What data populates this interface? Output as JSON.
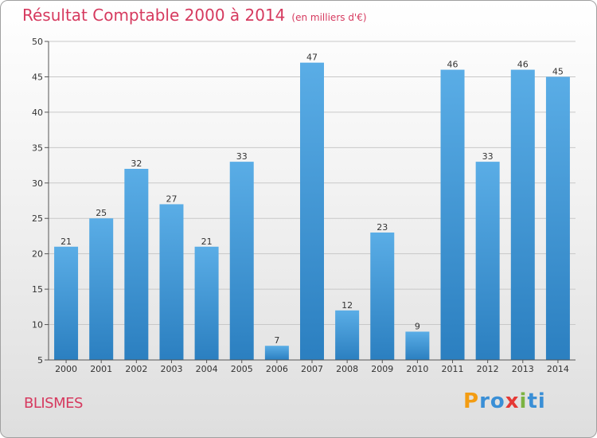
{
  "title": "Résultat Comptable 2000 à 2014",
  "subtitle": "(en milliers d'€)",
  "commune": "BLISMES",
  "logo": {
    "letters": [
      "P",
      "r",
      "o",
      "x",
      "i",
      "t",
      "i"
    ],
    "colors": [
      "#f39c12",
      "#3a8fd6",
      "#3a8fd6",
      "#e53935",
      "#7cb342",
      "#3a8fd6",
      "#3a8fd6"
    ]
  },
  "colors": {
    "title": "#d63a5f",
    "bar_light": "#5aade6",
    "bar_dark": "#2b7fc0",
    "grid": "#c8c8c8",
    "axis": "#555555"
  },
  "chart_data": {
    "type": "bar",
    "categories": [
      "2000",
      "2001",
      "2002",
      "2003",
      "2004",
      "2005",
      "2006",
      "2007",
      "2008",
      "2009",
      "2010",
      "2011",
      "2012",
      "2013",
      "2014"
    ],
    "values": [
      21,
      25,
      32,
      27,
      21,
      33,
      7,
      47,
      12,
      23,
      9,
      46,
      33,
      46,
      45
    ],
    "ylim": [
      5,
      50
    ],
    "yticks": [
      5,
      10,
      15,
      20,
      25,
      30,
      35,
      40,
      45,
      50
    ],
    "grid": true,
    "data_labels": true
  }
}
